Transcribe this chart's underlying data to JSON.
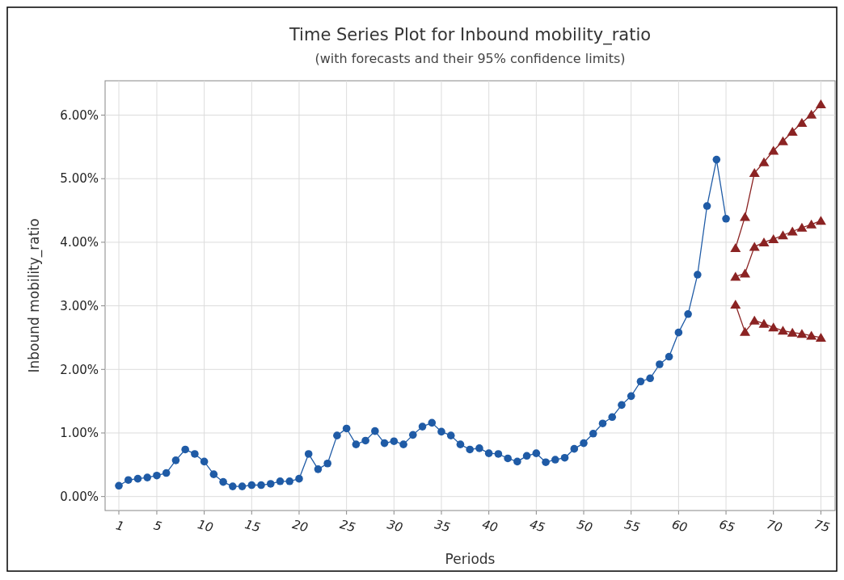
{
  "chart_data": {
    "type": "line",
    "title": "Time Series Plot for Inbound mobility_ratio",
    "subtitle": "(with forecasts and their 95% confidence limits)",
    "xlabel": "Periods",
    "ylabel": "Inbound mobility_ratio",
    "xlim": [
      -0.45,
      76.5
    ],
    "xticks": [
      1,
      5,
      10,
      15,
      20,
      25,
      30,
      35,
      40,
      45,
      50,
      55,
      60,
      65,
      70,
      75
    ],
    "ylim": [
      -0.22,
      6.54
    ],
    "yticks": [
      {
        "value": 0,
        "label": "0.00%"
      },
      {
        "value": 1,
        "label": "1.00%"
      },
      {
        "value": 2,
        "label": "2.00%"
      },
      {
        "value": 3,
        "label": "3.00%"
      },
      {
        "value": 4,
        "label": "4.00%"
      },
      {
        "value": 5,
        "label": "5.00%"
      },
      {
        "value": 6,
        "label": "6.00%"
      }
    ],
    "grid": true,
    "line_style": "solid",
    "series": [
      {
        "color": "#1f5ba6",
        "marker": "circle",
        "x": [
          1,
          2,
          3,
          4,
          5,
          6,
          7,
          8,
          9,
          10,
          11,
          12,
          13,
          14,
          15,
          16,
          17,
          18,
          19,
          20,
          21,
          22,
          23,
          24,
          25,
          26,
          27,
          28,
          29,
          30,
          31,
          32,
          33,
          34,
          35,
          36,
          37,
          38,
          39,
          40,
          41,
          42,
          43,
          44,
          45,
          46,
          47,
          48,
          49,
          50,
          51,
          52,
          53,
          54,
          55,
          56,
          57,
          58,
          59,
          60,
          61,
          62,
          63,
          64,
          65
        ],
        "values": [
          0.17,
          0.26,
          0.28,
          0.3,
          0.33,
          0.37,
          0.57,
          0.74,
          0.67,
          0.55,
          0.35,
          0.23,
          0.16,
          0.16,
          0.18,
          0.18,
          0.2,
          0.24,
          0.24,
          0.28,
          0.67,
          0.43,
          0.52,
          0.96,
          1.07,
          0.82,
          0.88,
          1.03,
          0.84,
          0.87,
          0.82,
          0.97,
          1.1,
          1.16,
          1.02,
          0.96,
          0.82,
          0.74,
          0.76,
          0.68,
          0.67,
          0.6,
          0.55,
          0.64,
          0.68,
          0.54,
          0.58,
          0.61,
          0.75,
          0.84,
          0.99,
          1.15,
          1.25,
          1.44,
          1.58,
          1.81,
          1.86,
          2.08,
          2.2,
          2.58,
          2.87,
          3.49,
          4.57,
          5.3,
          4.37
        ]
      },
      {
        "color": "#8b2323",
        "marker": "triangle",
        "x": [
          66,
          67,
          68,
          69,
          70,
          71,
          72,
          73,
          74,
          75
        ],
        "values": [
          3.91,
          4.4,
          5.09,
          5.26,
          5.44,
          5.59,
          5.74,
          5.88,
          6.01,
          6.17
        ]
      },
      {
        "color": "#8b2323",
        "marker": "triangle",
        "x": [
          66,
          67,
          68,
          69,
          70,
          71,
          72,
          73,
          74,
          75
        ],
        "values": [
          3.46,
          3.51,
          3.93,
          4.0,
          4.05,
          4.11,
          4.17,
          4.23,
          4.28,
          4.34
        ]
      },
      {
        "color": "#8b2323",
        "marker": "triangle",
        "x": [
          66,
          67,
          68,
          69,
          70,
          71,
          72,
          73,
          74,
          75
        ],
        "values": [
          3.02,
          2.59,
          2.77,
          2.72,
          2.66,
          2.61,
          2.58,
          2.56,
          2.53,
          2.5
        ]
      }
    ]
  }
}
